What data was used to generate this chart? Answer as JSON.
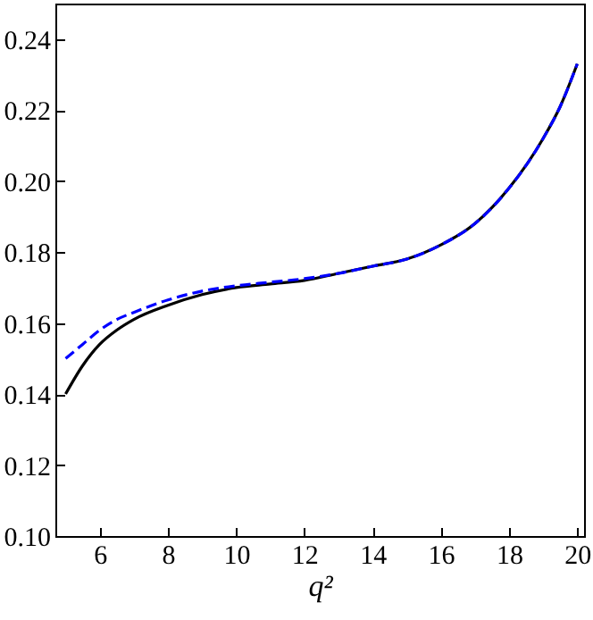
{
  "chart_data": {
    "type": "line",
    "xlabel": "q²",
    "x": [
      5,
      5.5,
      6,
      6.5,
      7,
      8,
      9,
      10,
      11,
      12,
      13,
      14,
      15,
      16,
      17,
      18,
      19,
      19.5,
      20
    ],
    "series": [
      {
        "color": "#000000",
        "line_style": "solid",
        "values": [
          0.14,
          0.148,
          0.154,
          0.158,
          0.161,
          0.165,
          0.168,
          0.17,
          0.171,
          0.172,
          0.174,
          0.176,
          0.178,
          0.182,
          0.188,
          0.198,
          0.212,
          0.221,
          0.233
        ]
      },
      {
        "color": "#0000ff",
        "line_style": "dashed",
        "values": [
          0.15,
          0.154,
          0.158,
          0.161,
          0.163,
          0.1665,
          0.169,
          0.1705,
          0.1715,
          0.1725,
          0.174,
          0.176,
          0.178,
          0.182,
          0.188,
          0.198,
          0.212,
          0.221,
          0.233
        ]
      }
    ],
    "xlim": [
      4.7,
      20.2
    ],
    "ylim": [
      0.1,
      0.25
    ],
    "xticks": [
      6,
      8,
      10,
      12,
      14,
      16,
      18,
      20
    ],
    "yticks": [
      {
        "value": 0.1,
        "label": "0.10"
      },
      0.12,
      0.14,
      0.16,
      0.18,
      {
        "value": 0.2,
        "label": "0.20"
      },
      0.22,
      0.24
    ],
    "grid": false
  }
}
